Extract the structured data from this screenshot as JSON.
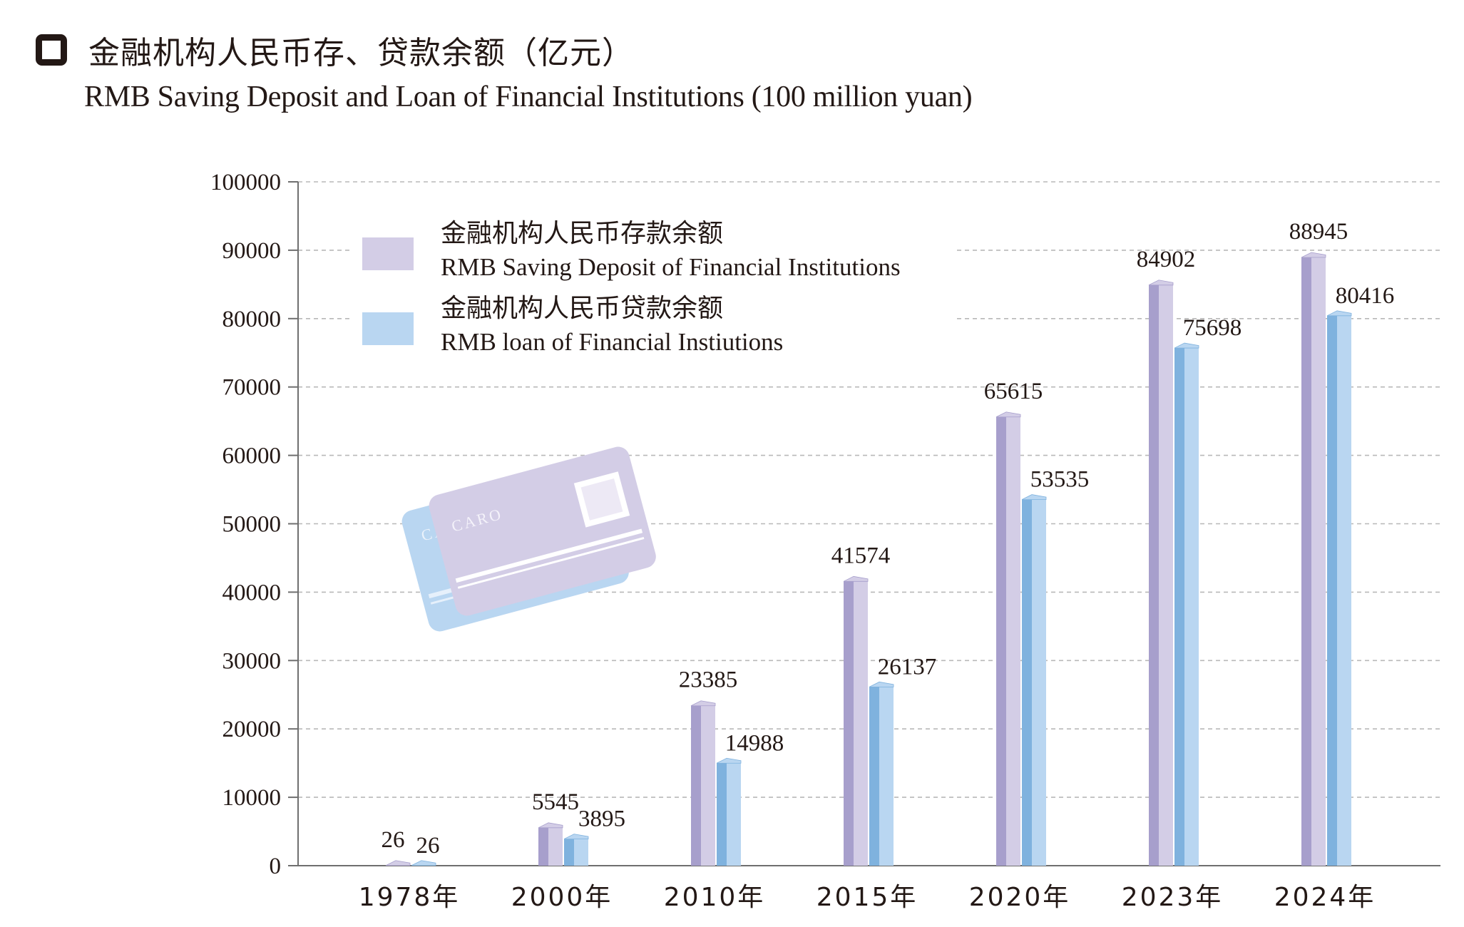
{
  "header": {
    "title_cn": "金融机构人民币存、贷款余额（亿元）",
    "title_en": "RMB Saving Deposit and Loan of Financial Institutions (100 million yuan)"
  },
  "colors": {
    "deposit_face": "#d3cde6",
    "deposit_side": "#a79fcc",
    "loan_face": "#b9d6f1",
    "loan_side": "#7fb2de",
    "grid": "#b8b8b8",
    "axis": "#6f6f6f"
  },
  "illustration": {
    "icon": "bank-card-icon",
    "card_text_front": "CARO",
    "card_text_back": "CA"
  },
  "chart_data": {
    "type": "bar",
    "categories": [
      "1978年",
      "2000年",
      "2010年",
      "2015年",
      "2020年",
      "2023年",
      "2024年"
    ],
    "series": [
      {
        "name_cn": "金融机构人民币存款余额",
        "name_en": "RMB Saving Deposit of Financial Institutions",
        "values": [
          26,
          5545,
          23385,
          41574,
          65615,
          84902,
          88945
        ]
      },
      {
        "name_cn": "金融机构人民币贷款余额",
        "name_en": "RMB loan of Financial Instiutions",
        "values": [
          26,
          3895,
          14988,
          26137,
          53535,
          75698,
          80416
        ]
      }
    ],
    "ylim": [
      0,
      100000
    ],
    "yticks": [
      0,
      10000,
      20000,
      30000,
      40000,
      50000,
      60000,
      70000,
      80000,
      90000,
      100000
    ],
    "grid": true,
    "legend_position": "top-left"
  }
}
